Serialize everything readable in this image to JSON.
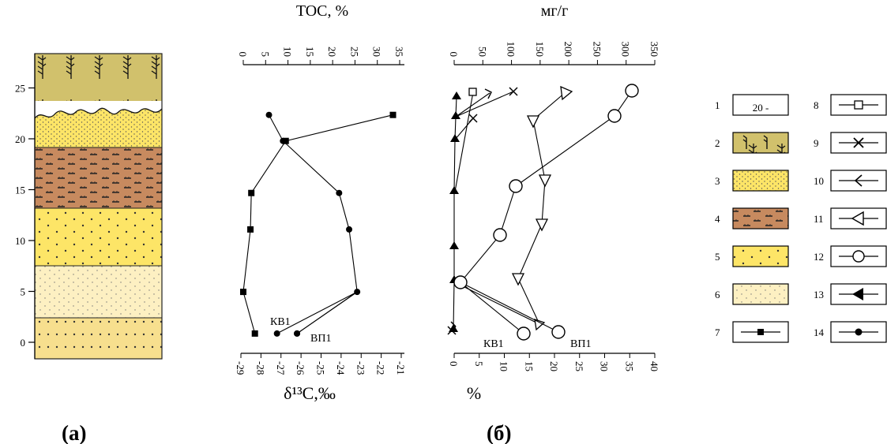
{
  "colors": {
    "coal_peat": "#d1c16c",
    "yellow_sand": "#fde567",
    "brown_silt": "#c78a5f",
    "light_sand": "#f7df8e",
    "pale_sand": "#fdf0c2",
    "black": "#000000"
  },
  "panel_a": {
    "label": "(а)",
    "depth_ticks": [
      "0",
      "5",
      "10",
      "15",
      "20",
      "25"
    ],
    "layers": [
      {
        "legend": "2",
        "from": 21.5,
        "to": 26.8,
        "fill": "coal_peat",
        "pattern": "plants"
      },
      {
        "legend": "3",
        "from": 17.5,
        "to": 21.5,
        "fill": "yellow_sand",
        "pattern": "fine-dots"
      },
      {
        "legend": "4",
        "from": 12.5,
        "to": 17.5,
        "fill": "brown_silt",
        "pattern": "dashes"
      },
      {
        "legend": "5",
        "from": 7.5,
        "to": 12.5,
        "fill": "yellow_sand",
        "pattern": "dots"
      },
      {
        "legend": "6",
        "from": 2.5,
        "to": 7.5,
        "fill": "pale_sand",
        "pattern": "small-dots"
      },
      {
        "legend": "5",
        "from": -1.0,
        "to": 2.5,
        "fill": "light_sand",
        "pattern": "dots"
      }
    ]
  },
  "panel_b": {
    "label": "(б)",
    "left_plot": {
      "top_axis_title": "TOC, %",
      "top_ticks": [
        "0",
        "5",
        "10",
        "15",
        "20",
        "25",
        "30",
        "35"
      ],
      "bottom_axis_title": "δ¹³C,‰",
      "bottom_ticks": [
        "-29",
        "-28",
        "-27",
        "-26",
        "-25",
        "-24",
        "-23",
        "-22",
        "-21"
      ],
      "toc_series": {
        "legend": "7",
        "depths": [
          1,
          5,
          11,
          14.5,
          19.5,
          22
        ],
        "values": [
          2.6,
          0,
          1.6,
          1.8,
          9.5,
          33.5
        ]
      },
      "d13c_series": {
        "legend": "14",
        "depths": [
          1,
          5,
          11,
          14.5,
          19.5,
          22
        ],
        "values": [
          -26.2,
          -23.2,
          -23.6,
          -24.1,
          -26.9,
          -27.6
        ]
      },
      "sample_labels": [
        "КВ1",
        "ВП1"
      ],
      "sample_points": [
        {
          "depth": 1,
          "d13c": -27.2
        },
        {
          "depth": 1,
          "d13c": -26.2
        }
      ]
    },
    "right_plot": {
      "top_axis_title": "мг/г",
      "top_ticks": [
        "0",
        "50",
        "100",
        "150",
        "200",
        "250",
        "300",
        "350"
      ],
      "bottom_axis_title": "%",
      "bottom_ticks": [
        "0",
        "5",
        "10",
        "15",
        "20",
        "25",
        "30",
        "35",
        "40"
      ],
      "sample_labels": [
        "КВ1",
        "ВП1"
      ]
    }
  },
  "legend": [
    {
      "num": "1",
      "text": "20 -"
    },
    {
      "num": "2"
    },
    {
      "num": "3"
    },
    {
      "num": "4"
    },
    {
      "num": "5"
    },
    {
      "num": "6"
    },
    {
      "num": "7"
    },
    {
      "num": "8"
    },
    {
      "num": "9"
    },
    {
      "num": "10"
    },
    {
      "num": "11"
    },
    {
      "num": "12"
    },
    {
      "num": "13"
    },
    {
      "num": "14"
    }
  ]
}
